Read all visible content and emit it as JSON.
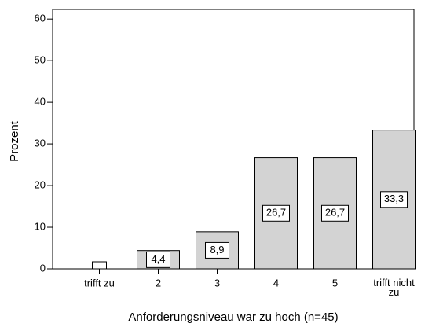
{
  "chart_data": {
    "type": "bar",
    "x_label": "Anforderungsniveau war zu hoch (n=45)",
    "y_label": "Prozent",
    "categories": [
      "trifft zu",
      "2",
      "3",
      "4",
      "5",
      "trifft nicht zu"
    ],
    "values": [
      0,
      4.4,
      8.9,
      26.7,
      26.7,
      33.3
    ],
    "value_labels": [
      null,
      "4,4",
      "8,9",
      "26,7",
      "26,7",
      "33,3"
    ],
    "color": "#d3d3d3",
    "ylim": [
      0,
      62.3
    ],
    "yticks": [
      0,
      10,
      20,
      30,
      40,
      50,
      60
    ]
  }
}
